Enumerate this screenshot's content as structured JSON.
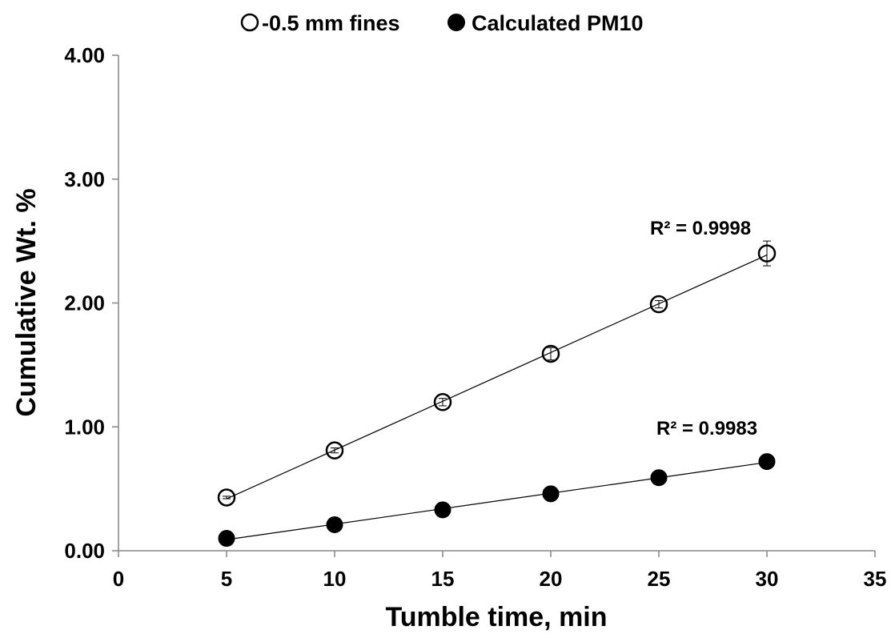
{
  "chart_data": {
    "type": "scatter",
    "xlabel": "Tumble time, min",
    "ylabel": "Cumulative Wt. %",
    "xlim": [
      0,
      35
    ],
    "ylim": [
      0,
      4
    ],
    "xticks": [
      "0",
      "5",
      "10",
      "15",
      "20",
      "25",
      "30",
      "35"
    ],
    "yticks": [
      "0.00",
      "1.00",
      "2.00",
      "3.00",
      "4.00"
    ],
    "legend_position": "top",
    "grid": false,
    "series": [
      {
        "name": "-0.5 mm fines",
        "marker": "open-circle",
        "x": [
          5,
          10,
          15,
          20,
          25,
          30
        ],
        "y": [
          0.43,
          0.81,
          1.2,
          1.59,
          1.99,
          2.4
        ],
        "error": [
          0.01,
          0.02,
          0.03,
          0.05,
          0.03,
          0.1
        ],
        "trendline": "linear",
        "r2_label": "R² = 0.9998"
      },
      {
        "name": "Calculated PM10",
        "marker": "filled-circle",
        "x": [
          5,
          10,
          15,
          20,
          25,
          30
        ],
        "y": [
          0.1,
          0.21,
          0.33,
          0.46,
          0.59,
          0.72
        ],
        "trendline": "linear",
        "r2_label": "R² = 0.9983"
      }
    ]
  }
}
